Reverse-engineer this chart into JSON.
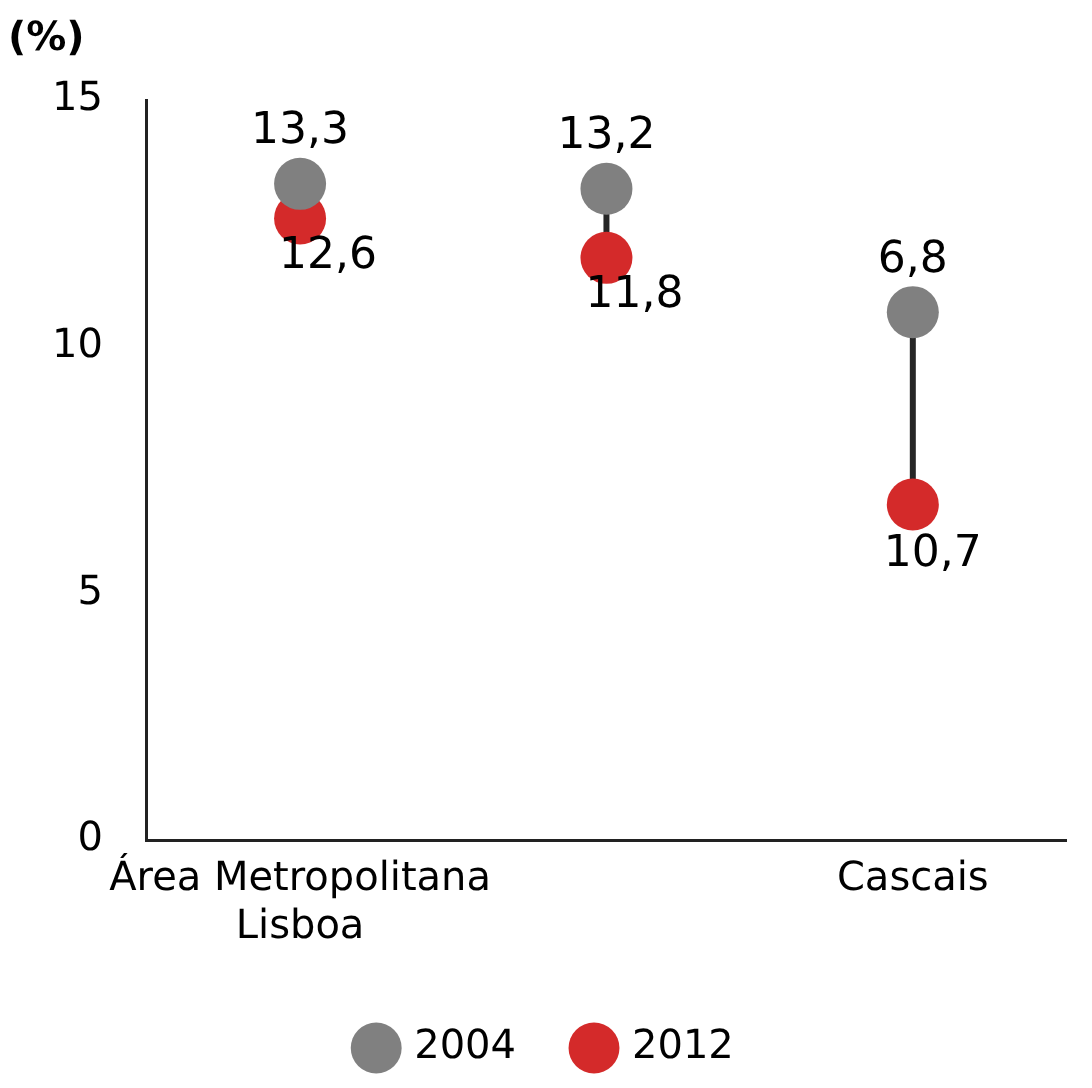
{
  "chart_data": {
    "type": "scatter",
    "ylabel": "(%)",
    "categories": [
      "Área Metropolitana Lisboa",
      null,
      "Cascais"
    ],
    "series": [
      {
        "name": "2004",
        "color": "#808080",
        "values": [
          13.3,
          13.2,
          10.7
        ],
        "value_labels": [
          "13,3",
          "13,2",
          null
        ]
      },
      {
        "name": "2012",
        "color": "#d42a2a",
        "values": [
          12.6,
          11.8,
          6.8
        ],
        "value_labels": [
          "12,6",
          "11,8",
          null
        ]
      }
    ],
    "annotations": [
      {
        "text": "6,8",
        "x": "Cascais",
        "y": 10.7
      },
      {
        "text": "10,7",
        "x": "Cascais",
        "y": 6.8
      }
    ],
    "ylim": [
      0,
      15
    ],
    "yticks": [
      0,
      5,
      10,
      15
    ],
    "grid": false,
    "legend": "bottom",
    "marker": "circle"
  }
}
